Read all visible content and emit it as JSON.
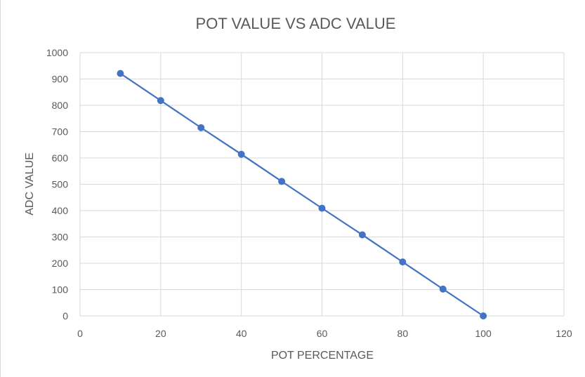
{
  "chart_data": {
    "type": "scatter",
    "title": "POT VALUE VS ADC VALUE",
    "xlabel": "POT PERCENTAGE",
    "ylabel": "ADC VALUE",
    "xlim": [
      0,
      120
    ],
    "ylim": [
      0,
      1000
    ],
    "x_ticks": [
      0,
      20,
      40,
      60,
      80,
      100,
      120
    ],
    "y_ticks": [
      0,
      100,
      200,
      300,
      400,
      500,
      600,
      700,
      800,
      900,
      1000
    ],
    "grid": true,
    "legend": "none",
    "series": [
      {
        "name": "ADC VALUE",
        "color": "#4472c4",
        "x": [
          10,
          20,
          30,
          40,
          50,
          60,
          70,
          80,
          90,
          100
        ],
        "values": [
          921,
          818,
          715,
          614,
          511,
          409,
          308,
          205,
          102,
          0
        ]
      }
    ]
  }
}
